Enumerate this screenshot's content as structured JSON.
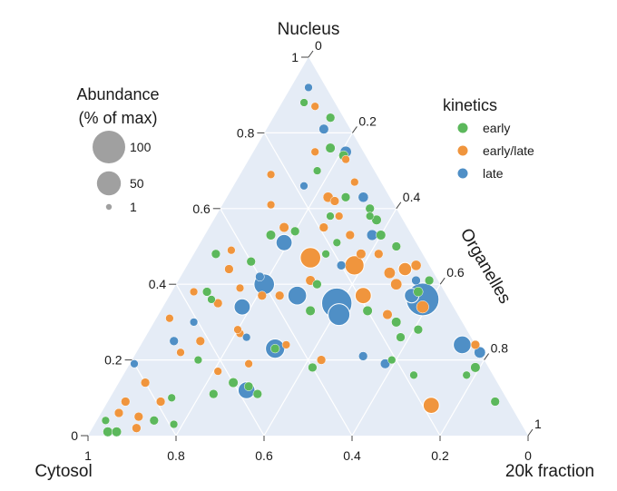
{
  "chart_data": {
    "type": "scatter",
    "subtype": "ternary",
    "axes": {
      "top": {
        "label": "Nucleus",
        "ticks": [
          "1",
          "0.8",
          "0.6",
          "0.4",
          "0.2",
          "0"
        ]
      },
      "right": {
        "label": "Organelles",
        "ticks": [
          "0",
          "0.2",
          "0.4",
          "0.6",
          "0.8",
          "1"
        ]
      },
      "bottom": {
        "label": "20k fraction",
        "ticks": [
          "1",
          "0.8",
          "0.6",
          "0.4",
          "0.2",
          "0"
        ]
      },
      "left_corner_label": "Cytosol"
    },
    "grid": true,
    "background_color": "#e5ecf6",
    "size_legend": {
      "title_line1": "Abundance",
      "title_line2": "(% of max)",
      "placement": "top-left",
      "entries": [
        {
          "label": "100",
          "value": 100
        },
        {
          "label": "50",
          "value": 50
        },
        {
          "label": "1",
          "value": 1
        }
      ]
    },
    "color_legend": {
      "title": "kinetics",
      "placement": "top-right",
      "entries": [
        {
          "label": "early",
          "color": "#5cb85c"
        },
        {
          "label": "early/late",
          "color": "#f0953d"
        },
        {
          "label": "late",
          "color": "#4f8fc6"
        }
      ]
    },
    "points": [
      {
        "nucleus": 0.92,
        "organelles": 0.04,
        "abundance": 3,
        "kinetics": "late"
      },
      {
        "nucleus": 0.87,
        "organelles": 0.08,
        "abundance": 3,
        "kinetics": "early/late"
      },
      {
        "nucleus": 0.81,
        "organelles": 0.13,
        "abundance": 5,
        "kinetics": "late"
      },
      {
        "nucleus": 0.84,
        "organelles": 0.13,
        "abundance": 4,
        "kinetics": "early"
      },
      {
        "nucleus": 0.76,
        "organelles": 0.17,
        "abundance": 5,
        "kinetics": "early"
      },
      {
        "nucleus": 0.75,
        "organelles": 0.21,
        "abundance": 8,
        "kinetics": "late"
      },
      {
        "nucleus": 0.74,
        "organelles": 0.21,
        "abundance": 5,
        "kinetics": "early"
      },
      {
        "nucleus": 0.75,
        "organelles": 0.14,
        "abundance": 3,
        "kinetics": "early/late"
      },
      {
        "nucleus": 0.73,
        "organelles": 0.22,
        "abundance": 3,
        "kinetics": "early/late"
      },
      {
        "nucleus": 0.7,
        "organelles": 0.17,
        "abundance": 3,
        "kinetics": "early"
      },
      {
        "nucleus": 0.66,
        "organelles": 0.16,
        "abundance": 3,
        "kinetics": "late"
      },
      {
        "nucleus": 0.63,
        "organelles": 0.23,
        "abundance": 6,
        "kinetics": "early/late"
      },
      {
        "nucleus": 0.62,
        "organelles": 0.25,
        "abundance": 4,
        "kinetics": "early/late"
      },
      {
        "nucleus": 0.63,
        "organelles": 0.27,
        "abundance": 4,
        "kinetics": "early"
      },
      {
        "nucleus": 0.63,
        "organelles": 0.31,
        "abundance": 6,
        "kinetics": "late"
      },
      {
        "nucleus": 0.58,
        "organelles": 0.26,
        "abundance": 3,
        "kinetics": "early"
      },
      {
        "nucleus": 0.6,
        "organelles": 0.34,
        "abundance": 4,
        "kinetics": "early"
      },
      {
        "nucleus": 0.58,
        "organelles": 0.35,
        "abundance": 3,
        "kinetics": "early"
      },
      {
        "nucleus": 0.57,
        "organelles": 0.37,
        "abundance": 5,
        "kinetics": "early"
      },
      {
        "nucleus": 0.61,
        "organelles": 0.11,
        "abundance": 3,
        "kinetics": "early/late"
      },
      {
        "nucleus": 0.55,
        "organelles": 0.17,
        "abundance": 5,
        "kinetics": "early/late"
      },
      {
        "nucleus": 0.54,
        "organelles": 0.2,
        "abundance": 4,
        "kinetics": "early"
      },
      {
        "nucleus": 0.55,
        "organelles": 0.26,
        "abundance": 4,
        "kinetics": "early/late"
      },
      {
        "nucleus": 0.53,
        "organelles": 0.38,
        "abundance": 7,
        "kinetics": "late"
      },
      {
        "nucleus": 0.53,
        "organelles": 0.4,
        "abundance": 5,
        "kinetics": "early"
      },
      {
        "nucleus": 0.53,
        "organelles": 0.33,
        "abundance": 4,
        "kinetics": "early/late"
      },
      {
        "nucleus": 0.53,
        "organelles": 0.15,
        "abundance": 5,
        "kinetics": "early"
      },
      {
        "nucleus": 0.51,
        "organelles": 0.19,
        "abundance": 20,
        "kinetics": "late"
      },
      {
        "nucleus": 0.51,
        "organelles": 0.31,
        "abundance": 3,
        "kinetics": "early"
      },
      {
        "nucleus": 0.48,
        "organelles": 0.3,
        "abundance": 3,
        "kinetics": "early"
      },
      {
        "nucleus": 0.48,
        "organelles": 0.38,
        "abundance": 5,
        "kinetics": "early/late"
      },
      {
        "nucleus": 0.47,
        "organelles": 0.27,
        "abundance": 35,
        "kinetics": "early/late"
      },
      {
        "nucleus": 0.45,
        "organelles": 0.38,
        "abundance": 30,
        "kinetics": "early/late"
      },
      {
        "nucleus": 0.49,
        "organelles": 0.08,
        "abundance": 3,
        "kinetics": "early/late"
      },
      {
        "nucleus": 0.48,
        "organelles": 0.05,
        "abundance": 4,
        "kinetics": "early"
      },
      {
        "nucleus": 0.46,
        "organelles": 0.14,
        "abundance": 4,
        "kinetics": "early"
      },
      {
        "nucleus": 0.44,
        "organelles": 0.1,
        "abundance": 4,
        "kinetics": "early/late"
      },
      {
        "nucleus": 0.42,
        "organelles": 0.18,
        "abundance": 4,
        "kinetics": "late"
      },
      {
        "nucleus": 0.43,
        "organelles": 0.47,
        "abundance": 8,
        "kinetics": "early/late"
      },
      {
        "nucleus": 0.44,
        "organelles": 0.5,
        "abundance": 12,
        "kinetics": "early/late"
      },
      {
        "nucleus": 0.45,
        "organelles": 0.52,
        "abundance": 6,
        "kinetics": "early/late"
      },
      {
        "nucleus": 0.4,
        "organelles": 0.2,
        "abundance": 35,
        "kinetics": "late"
      },
      {
        "nucleus": 0.41,
        "organelles": 0.3,
        "abundance": 5,
        "kinetics": "early/late"
      },
      {
        "nucleus": 0.4,
        "organelles": 0.32,
        "abundance": 4,
        "kinetics": "early"
      },
      {
        "nucleus": 0.4,
        "organelles": 0.5,
        "abundance": 8,
        "kinetics": "early/late"
      },
      {
        "nucleus": 0.41,
        "organelles": 0.54,
        "abundance": 4,
        "kinetics": "late"
      },
      {
        "nucleus": 0.41,
        "organelles": 0.57,
        "abundance": 4,
        "kinetics": "early"
      },
      {
        "nucleus": 0.39,
        "organelles": 0.15,
        "abundance": 3,
        "kinetics": "early/late"
      },
      {
        "nucleus": 0.38,
        "organelles": 0.08,
        "abundance": 4,
        "kinetics": "early"
      },
      {
        "nucleus": 0.37,
        "organelles": 0.21,
        "abundance": 4,
        "kinetics": "early/late"
      },
      {
        "nucleus": 0.37,
        "organelles": 0.25,
        "abundance": 4,
        "kinetics": "early/late"
      },
      {
        "nucleus": 0.37,
        "organelles": 0.29,
        "abundance": 28,
        "kinetics": "late"
      },
      {
        "nucleus": 0.37,
        "organelles": 0.44,
        "abundance": 20,
        "kinetics": "early/late"
      },
      {
        "nucleus": 0.36,
        "organelles": 0.58,
        "abundance": 100,
        "kinetics": "late"
      },
      {
        "nucleus": 0.37,
        "organelles": 0.55,
        "abundance": 15,
        "kinetics": "late"
      },
      {
        "nucleus": 0.38,
        "organelles": 0.56,
        "abundance": 5,
        "kinetics": "early"
      },
      {
        "nucleus": 0.35,
        "organelles": 0.39,
        "abundance": 85,
        "kinetics": "late"
      },
      {
        "nucleus": 0.34,
        "organelles": 0.59,
        "abundance": 10,
        "kinetics": "early/late"
      },
      {
        "nucleus": 0.34,
        "organelles": 0.18,
        "abundance": 20,
        "kinetics": "late"
      },
      {
        "nucleus": 0.33,
        "organelles": 0.47,
        "abundance": 5,
        "kinetics": "early"
      },
      {
        "nucleus": 0.33,
        "organelles": 0.34,
        "abundance": 5,
        "kinetics": "early"
      },
      {
        "nucleus": 0.32,
        "organelles": 0.41,
        "abundance": 40,
        "kinetics": "late"
      },
      {
        "nucleus": 0.32,
        "organelles": 0.52,
        "abundance": 5,
        "kinetics": "early/late"
      },
      {
        "nucleus": 0.31,
        "organelles": 0.03,
        "abundance": 3,
        "kinetics": "early/late"
      },
      {
        "nucleus": 0.3,
        "organelles": 0.09,
        "abundance": 3,
        "kinetics": "late"
      },
      {
        "nucleus": 0.3,
        "organelles": 0.55,
        "abundance": 5,
        "kinetics": "early"
      },
      {
        "nucleus": 0.26,
        "organelles": 0.58,
        "abundance": 4,
        "kinetics": "early"
      },
      {
        "nucleus": 0.27,
        "organelles": 0.21,
        "abundance": 3,
        "kinetics": "early/late"
      },
      {
        "nucleus": 0.25,
        "organelles": 0.13,
        "abundance": 4,
        "kinetics": "early/late"
      },
      {
        "nucleus": 0.25,
        "organelles": 0.07,
        "abundance": 4,
        "kinetics": "late"
      },
      {
        "nucleus": 0.26,
        "organelles": 0.23,
        "abundance": 3,
        "kinetics": "late"
      },
      {
        "nucleus": 0.24,
        "organelles": 0.33,
        "abundance": 3,
        "kinetics": "early/late"
      },
      {
        "nucleus": 0.23,
        "organelles": 0.31,
        "abundance": 30,
        "kinetics": "late"
      },
      {
        "nucleus": 0.23,
        "organelles": 0.31,
        "abundance": 4,
        "kinetics": "early"
      },
      {
        "nucleus": 0.24,
        "organelles": 0.73,
        "abundance": 25,
        "kinetics": "late"
      },
      {
        "nucleus": 0.22,
        "organelles": 0.78,
        "abundance": 8,
        "kinetics": "late"
      },
      {
        "nucleus": 0.24,
        "organelles": 0.76,
        "abundance": 4,
        "kinetics": "early/late"
      },
      {
        "nucleus": 0.22,
        "organelles": 0.1,
        "abundance": 3,
        "kinetics": "early/late"
      },
      {
        "nucleus": 0.2,
        "organelles": 0.15,
        "abundance": 3,
        "kinetics": "early"
      },
      {
        "nucleus": 0.2,
        "organelles": 0.43,
        "abundance": 4,
        "kinetics": "early/late"
      },
      {
        "nucleus": 0.21,
        "organelles": 0.52,
        "abundance": 4,
        "kinetics": "late"
      },
      {
        "nucleus": 0.2,
        "organelles": 0.59,
        "abundance": 3,
        "kinetics": "early"
      },
      {
        "nucleus": 0.19,
        "organelles": 0.58,
        "abundance": 5,
        "kinetics": "late"
      },
      {
        "nucleus": 0.18,
        "organelles": 0.42,
        "abundance": 4,
        "kinetics": "early"
      },
      {
        "nucleus": 0.19,
        "organelles": 0.01,
        "abundance": 3,
        "kinetics": "late"
      },
      {
        "nucleus": 0.19,
        "organelles": 0.27,
        "abundance": 3,
        "kinetics": "early/late"
      },
      {
        "nucleus": 0.18,
        "organelles": 0.79,
        "abundance": 5,
        "kinetics": "early"
      },
      {
        "nucleus": 0.16,
        "organelles": 0.78,
        "abundance": 3,
        "kinetics": "early"
      },
      {
        "nucleus": 0.17,
        "organelles": 0.21,
        "abundance": 3,
        "kinetics": "early/late"
      },
      {
        "nucleus": 0.14,
        "organelles": 0.26,
        "abundance": 5,
        "kinetics": "early"
      },
      {
        "nucleus": 0.14,
        "organelles": 0.06,
        "abundance": 4,
        "kinetics": "early/late"
      },
      {
        "nucleus": 0.13,
        "organelles": 0.3,
        "abundance": 4,
        "kinetics": "early"
      },
      {
        "nucleus": 0.12,
        "organelles": 0.3,
        "abundance": 22,
        "kinetics": "late"
      },
      {
        "nucleus": 0.11,
        "organelles": 0.33,
        "abundance": 4,
        "kinetics": "early"
      },
      {
        "nucleus": 0.11,
        "organelles": 0.23,
        "abundance": 4,
        "kinetics": "early"
      },
      {
        "nucleus": 0.1,
        "organelles": 0.14,
        "abundance": 3,
        "kinetics": "early"
      },
      {
        "nucleus": 0.09,
        "organelles": 0.12,
        "abundance": 4,
        "kinetics": "early/late"
      },
      {
        "nucleus": 0.09,
        "organelles": 0.04,
        "abundance": 4,
        "kinetics": "early/late"
      },
      {
        "nucleus": 0.08,
        "organelles": 0.74,
        "abundance": 20,
        "kinetics": "early/late"
      },
      {
        "nucleus": 0.09,
        "organelles": 0.88,
        "abundance": 4,
        "kinetics": "early"
      },
      {
        "nucleus": 0.06,
        "organelles": 0.04,
        "abundance": 4,
        "kinetics": "early/late"
      },
      {
        "nucleus": 0.05,
        "organelles": 0.09,
        "abundance": 4,
        "kinetics": "early/late"
      },
      {
        "nucleus": 0.04,
        "organelles": 0.02,
        "abundance": 3,
        "kinetics": "early"
      },
      {
        "nucleus": 0.04,
        "organelles": 0.13,
        "abundance": 4,
        "kinetics": "early"
      },
      {
        "nucleus": 0.01,
        "organelles": 0.04,
        "abundance": 5,
        "kinetics": "early"
      },
      {
        "nucleus": 0.01,
        "organelles": 0.06,
        "abundance": 5,
        "kinetics": "early"
      },
      {
        "nucleus": 0.02,
        "organelles": 0.1,
        "abundance": 4,
        "kinetics": "early/late"
      },
      {
        "nucleus": 0.69,
        "organelles": 0.07,
        "abundance": 3,
        "kinetics": "early/late"
      },
      {
        "nucleus": 0.88,
        "organelles": 0.05,
        "abundance": 3,
        "kinetics": "early"
      },
      {
        "nucleus": 0.36,
        "organelles": 0.1,
        "abundance": 3,
        "kinetics": "early"
      },
      {
        "nucleus": 0.35,
        "organelles": 0.12,
        "abundance": 4,
        "kinetics": "early/late"
      },
      {
        "nucleus": 0.28,
        "organelles": 0.2,
        "abundance": 3,
        "kinetics": "early/late"
      },
      {
        "nucleus": 0.28,
        "organelles": 0.61,
        "abundance": 4,
        "kinetics": "early"
      },
      {
        "nucleus": 0.38,
        "organelles": 0.05,
        "abundance": 3,
        "kinetics": "early/late"
      },
      {
        "nucleus": 0.45,
        "organelles": 0.35,
        "abundance": 4,
        "kinetics": "late"
      },
      {
        "nucleus": 0.58,
        "organelles": 0.28,
        "abundance": 3,
        "kinetics": "early/late"
      },
      {
        "nucleus": 0.5,
        "organelles": 0.45,
        "abundance": 4,
        "kinetics": "early"
      },
      {
        "nucleus": 0.48,
        "organelles": 0.42,
        "abundance": 4,
        "kinetics": "early/late"
      },
      {
        "nucleus": 0.67,
        "organelles": 0.27,
        "abundance": 3,
        "kinetics": "early/late"
      },
      {
        "nucleus": 0.16,
        "organelles": 0.66,
        "abundance": 3,
        "kinetics": "early"
      },
      {
        "nucleus": 0.03,
        "organelles": 0.18,
        "abundance": 3,
        "kinetics": "early"
      }
    ]
  }
}
